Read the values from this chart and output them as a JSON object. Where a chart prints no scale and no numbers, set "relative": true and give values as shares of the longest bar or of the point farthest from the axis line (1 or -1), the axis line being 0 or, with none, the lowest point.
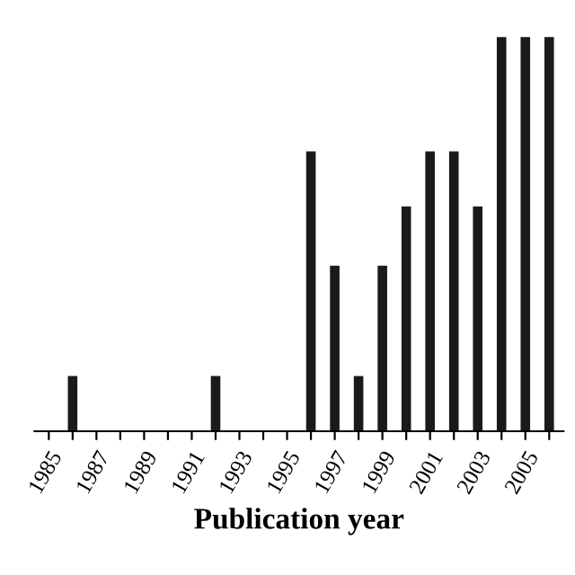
{
  "chart_data": {
    "type": "bar",
    "relative": true,
    "xlabel": "Publication year",
    "color": "#1a1a1a",
    "categories": [
      "1985",
      null,
      "1987",
      null,
      "1989",
      null,
      "1991",
      null,
      "1993",
      null,
      "1995",
      null,
      "1997",
      null,
      "1999",
      null,
      "2001",
      null,
      "2003",
      null,
      "2005",
      null
    ],
    "values": [
      0,
      0.14,
      0,
      0,
      0,
      0,
      0,
      0.14,
      0,
      0,
      0,
      0.71,
      0.42,
      0.14,
      0.42,
      0.57,
      0.71,
      0.71,
      0.57,
      1,
      1,
      1
    ]
  }
}
